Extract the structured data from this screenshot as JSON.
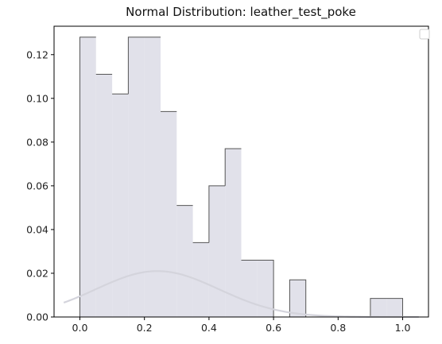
{
  "chart_data": {
    "type": "bar",
    "title": "Normal Distribution: leather_test_poke",
    "xlabel": "",
    "ylabel": "",
    "xlim": [
      -0.08,
      1.08
    ],
    "ylim": [
      0,
      0.133
    ],
    "x_ticks": [
      0.0,
      0.2,
      0.4,
      0.6,
      0.8,
      1.0
    ],
    "x_tick_labels": [
      "0.0",
      "0.2",
      "0.4",
      "0.6",
      "0.8",
      "1.0"
    ],
    "y_ticks": [
      0.0,
      0.02,
      0.04,
      0.06,
      0.08,
      0.1,
      0.12
    ],
    "y_tick_labels": [
      "0.00",
      "0.02",
      "0.04",
      "0.06",
      "0.08",
      "0.10",
      "0.12"
    ],
    "grid": false,
    "legend": "top-right (empty)",
    "histogram": {
      "bin_edges": [
        0.0,
        0.05,
        0.1,
        0.15,
        0.2,
        0.25,
        0.3,
        0.35,
        0.4,
        0.45,
        0.5,
        0.55,
        0.6,
        0.65,
        0.7,
        0.75,
        0.8,
        0.85,
        0.9,
        0.95,
        1.0
      ],
      "values": [
        0.128,
        0.111,
        0.102,
        0.128,
        0.128,
        0.094,
        0.051,
        0.034,
        0.06,
        0.077,
        0.026,
        0.026,
        0,
        0.017,
        0,
        0,
        0,
        0,
        0.0085,
        0.0085
      ],
      "fill_color": "#e1e1ea",
      "edge_color": "#555555"
    },
    "curve": {
      "type": "normal_pdf",
      "x_range": [
        -0.05,
        1.05
      ],
      "mean": 0.24,
      "peak": 0.021,
      "sd": 0.19,
      "color": "#d4d4dc"
    }
  }
}
